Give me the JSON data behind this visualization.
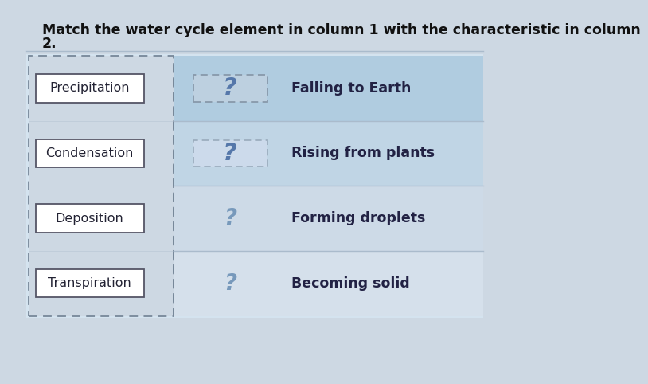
{
  "title_line1": "Match the water cycle element in column 1 with the characteristic in column",
  "title_line2": "2.",
  "title_fontsize": 12.5,
  "col1_items": [
    "Precipitation",
    "Condensation",
    "Deposition",
    "Transpiration"
  ],
  "col2_items": [
    "Falling to Earth",
    "Rising from plants",
    "Forming droplets",
    "Becoming solid"
  ],
  "question_mark": "?",
  "overall_bg": "#cdd8e3",
  "title_area_bg": "#cdd8e3",
  "content_bg": "#d4e3ef",
  "left_panel_bg": "#cdd8e3",
  "right_panel_bg": "#b8cfe0",
  "row1_bg": "#b0cce0",
  "row2_bg": "#c0d5e5",
  "row3_bg": "#cddae7",
  "row4_bg": "#d5e0eb",
  "col1_box_fill": "#ffffff",
  "col1_box_edge": "#555566",
  "qmark_box1_fill": "#bdd0e0",
  "qmark_box1_edge": "#8899aa",
  "qmark_box2_fill": "#ccdaeb",
  "qmark_box2_edge": "#99aabb",
  "qmark_color_row12": "#5577aa",
  "qmark_color_row34": "#7799bb",
  "text_col2_color": "#222244",
  "divider_color": "#aabbcc",
  "left_dashed_color": "#778899"
}
